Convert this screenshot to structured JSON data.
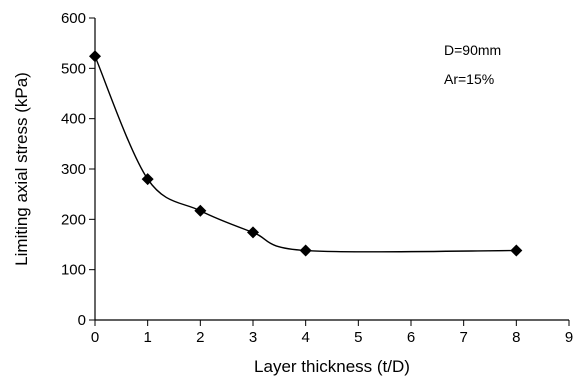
{
  "chart_data": {
    "type": "scatter",
    "xlabel": "Layer thickness (t/D)",
    "ylabel": "Limiting axial stress (kPa)",
    "xlim": [
      0,
      9
    ],
    "ylim": [
      0,
      600
    ],
    "xticks": [
      "0",
      "1",
      "2",
      "3",
      "4",
      "5",
      "6",
      "7",
      "8",
      "9"
    ],
    "yticks": [
      "0",
      "100",
      "200",
      "300",
      "400",
      "500",
      "600"
    ],
    "grid": false,
    "annotations": [
      "D=90mm",
      "Ar=15%"
    ],
    "series": [
      {
        "x": [
          0,
          1,
          2,
          3,
          4,
          8
        ],
        "y": [
          524,
          280,
          217,
          174,
          138,
          138
        ],
        "smooth_curve": true
      }
    ],
    "colors": {
      "line": "#000000",
      "marker": "#000000"
    }
  }
}
